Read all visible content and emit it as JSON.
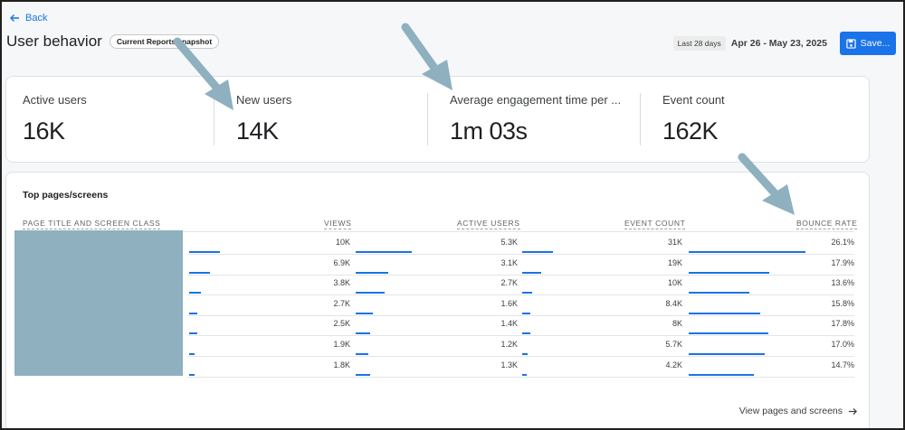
{
  "nav": {
    "back_label": "Back"
  },
  "header": {
    "title": "User behavior",
    "chip": "Current Reports snapshot",
    "date_tag": "Last 28 days",
    "date_range": "Apr 26 - May 23, 2025",
    "save_label": "Save..."
  },
  "kpis": [
    {
      "label": "Active users",
      "value": "16K"
    },
    {
      "label": "New users",
      "value": "14K"
    },
    {
      "label": "Average engagement time per ...",
      "value": "1m 03s"
    },
    {
      "label": "Event count",
      "value": "162K"
    }
  ],
  "table": {
    "title": "Top pages/screens",
    "columns": {
      "page": "PAGE TITLE AND SCREEN CLASS",
      "views": "VIEWS",
      "active_users": "ACTIVE USERS",
      "event_count": "EVENT COUNT",
      "bounce_rate": "BOUNCE RATE"
    },
    "rows": [
      {
        "views": "10K",
        "active_users": "5.3K",
        "event_count": "31K",
        "bounce_rate": "26.1%"
      },
      {
        "views": "6.9K",
        "active_users": "3.1K",
        "event_count": "19K",
        "bounce_rate": "17.9%"
      },
      {
        "views": "3.8K",
        "active_users": "2.7K",
        "event_count": "10K",
        "bounce_rate": "13.6%"
      },
      {
        "views": "2.7K",
        "active_users": "1.6K",
        "event_count": "8.4K",
        "bounce_rate": "15.8%"
      },
      {
        "views": "2.5K",
        "active_users": "1.4K",
        "event_count": "8K",
        "bounce_rate": "17.8%"
      },
      {
        "views": "1.9K",
        "active_users": "1.2K",
        "event_count": "5.7K",
        "bounce_rate": "17.0%"
      },
      {
        "views": "1.8K",
        "active_users": "1.3K",
        "event_count": "4.2K",
        "bounce_rate": "14.7%"
      }
    ],
    "bar_fractions": {
      "views": [
        1.0,
        0.69,
        0.38,
        0.27,
        0.25,
        0.19,
        0.18
      ],
      "active_users": [
        1.0,
        0.58,
        0.51,
        0.3,
        0.26,
        0.23,
        0.25
      ],
      "event_count": [
        1.0,
        0.61,
        0.32,
        0.27,
        0.26,
        0.18,
        0.14
      ],
      "bounce_rate": [
        1.0,
        0.69,
        0.52,
        0.61,
        0.68,
        0.65,
        0.56
      ]
    },
    "view_link": "View pages and screens"
  },
  "colors": {
    "accent": "#1a73e8",
    "annotation_arrow": "#8eb0bf"
  },
  "icons": {
    "back": "arrow-left-icon",
    "save": "save-icon",
    "view_link": "arrow-right-icon"
  }
}
